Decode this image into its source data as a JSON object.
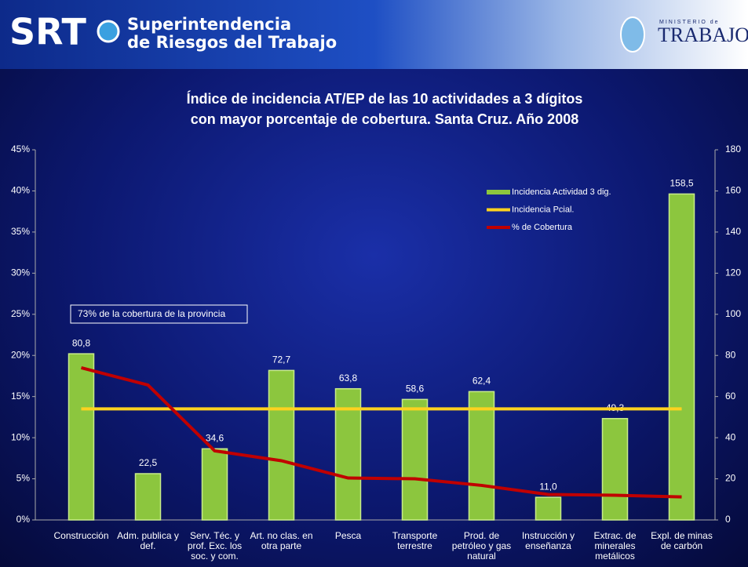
{
  "header": {
    "logo": "SRT",
    "org_line1": "Superintendencia",
    "org_line2": "de Riesgos del Trabajo",
    "ministry_small": "MINISTERIO de",
    "ministry": "TRABAJO"
  },
  "chart_data": {
    "type": "bar",
    "title": "Índice de incidencia  AT/EP de las 10 actividades a 3 dígitos",
    "subtitle": "con mayor  porcentaje de cobertura.  Santa Cruz.  Año 2008",
    "annotation": "73% de la cobertura de la provincia",
    "categories": [
      "Construcción",
      "Adm. publica y def.",
      "Serv. Téc. y prof. Exc. los soc. y com.",
      "Art. no clas. en otra parte",
      "Pesca",
      "Transporte terrestre",
      "Prod. de petróleo y gas natural",
      "Instrucción y enseñanza",
      "Extrac. de minerales metálicos",
      "Expl. de minas de carbón"
    ],
    "series": [
      {
        "name": "Incidencia Actividad 3 dig.",
        "type": "bar",
        "axis": "y2",
        "color": "#8cc63e",
        "values": [
          80.8,
          22.5,
          34.6,
          72.7,
          63.8,
          58.6,
          62.4,
          11.0,
          49.3,
          158.5
        ],
        "value_labels": [
          "80,8",
          "22,5",
          "34,6",
          "72,7",
          "63,8",
          "58,6",
          "62,4",
          "11,0",
          "49,3",
          "158,5"
        ]
      },
      {
        "name": "Incidencia Pcial.",
        "type": "line",
        "axis": "y2",
        "color": "#ffd21f",
        "values": [
          54,
          54,
          54,
          54,
          54,
          54,
          54,
          54,
          54,
          54
        ]
      },
      {
        "name": "% de Cobertura",
        "type": "line",
        "axis": "y",
        "color": "#c00000",
        "values": [
          18.5,
          16.4,
          8.4,
          7.2,
          5.1,
          5.0,
          4.2,
          3.1,
          3.0,
          2.8
        ]
      }
    ],
    "ylim": [
      0,
      45
    ],
    "yticks": [
      {
        "value": 0,
        "label": "0%"
      },
      {
        "value": 5,
        "label": "5%"
      },
      {
        "value": 10,
        "label": "10%"
      },
      {
        "value": 15,
        "label": "15%"
      },
      {
        "value": 20,
        "label": "20%"
      },
      {
        "value": 25,
        "label": "25%"
      },
      {
        "value": 30,
        "label": "30%"
      },
      {
        "value": 35,
        "label": "35%"
      },
      {
        "value": 40,
        "label": "40%"
      },
      {
        "value": 45,
        "label": "45%"
      }
    ],
    "y2lim": [
      0,
      180
    ],
    "y2ticks": [
      0,
      20,
      40,
      60,
      80,
      100,
      120,
      140,
      160,
      180
    ],
    "legend": "upper right"
  }
}
